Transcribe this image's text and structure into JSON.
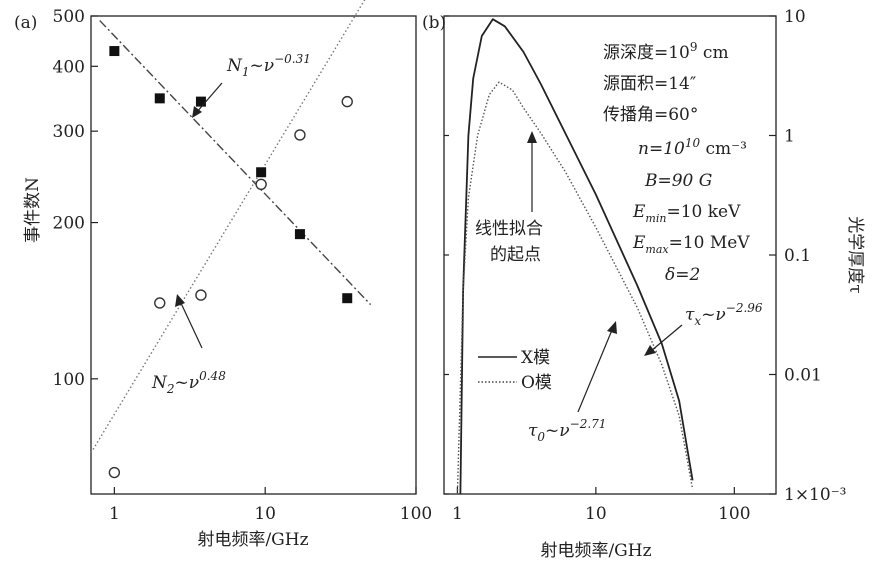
{
  "chart_data": [
    {
      "panel_label": "(a)",
      "type": "scatter",
      "xlabel": "射电频率/GHz",
      "ylabel": "事件数N",
      "xscale": "log",
      "yscale": "log",
      "xlim": [
        0.7,
        100
      ],
      "ylim": [
        60,
        500
      ],
      "xticks": [
        1,
        10,
        100
      ],
      "xtick_labels": [
        "1",
        "10",
        "100"
      ],
      "yticks": [
        100,
        200,
        300,
        400,
        500
      ],
      "ytick_labels": [
        "100",
        "200",
        "300",
        "400",
        "500"
      ],
      "series": [
        {
          "name": "N1",
          "marker": "filled-square",
          "points": [
            [
              1.0,
              428
            ],
            [
              2.0,
              347
            ],
            [
              3.75,
              342
            ],
            [
              9.4,
              250
            ],
            [
              17.0,
              190
            ],
            [
              35.0,
              143
            ]
          ]
        },
        {
          "name": "N2",
          "marker": "open-circle",
          "points": [
            [
              1.0,
              66
            ],
            [
              2.0,
              140
            ],
            [
              3.75,
              145
            ],
            [
              9.4,
              237
            ],
            [
              17.0,
              295
            ],
            [
              35.0,
              342
            ]
          ]
        }
      ],
      "fits": [
        {
          "series": "N1",
          "style": "dash-dot",
          "exponent": -0.31,
          "x": [
            0.8,
            50
          ],
          "y": [
            490,
            139
          ]
        },
        {
          "series": "N2",
          "style": "dotted",
          "exponent": 0.48,
          "x": [
            0.7,
            50
          ],
          "y": [
            72,
            561
          ]
        }
      ],
      "annotations": [
        {
          "base": "N",
          "sub": "1",
          "mid": "~ν",
          "sup": "−0.31"
        },
        {
          "base": "N",
          "sub": "2",
          "mid": "~ν",
          "sup": "0.48"
        }
      ]
    },
    {
      "panel_label": "(b)",
      "type": "line",
      "xlabel": "射电频率/GHz",
      "ylabel_right": "光学厚度τ",
      "xscale": "log",
      "yscale": "log",
      "xlim": [
        0.8,
        200
      ],
      "ylim": [
        0.001,
        10
      ],
      "xticks": [
        1,
        10,
        100
      ],
      "xtick_labels": [
        "1",
        "10",
        "100"
      ],
      "yticks": [
        0.001,
        0.01,
        0.1,
        1,
        10
      ],
      "ytick_labels": [
        "1×10⁻³",
        "0.01",
        "0.1",
        "1",
        "10"
      ],
      "params": [
        {
          "text": "源深度=10",
          "sup": "9",
          "tail": " cm"
        },
        {
          "text": "源面积=14″",
          "sup": "",
          "tail": ""
        },
        {
          "text": "传播角=60°",
          "sup": "",
          "tail": ""
        },
        {
          "text": "n=10",
          "sup": "10",
          "tail": " cm⁻³"
        },
        {
          "text": "B=90 G",
          "sup": "",
          "tail": ""
        },
        {
          "text": "E",
          "sub": "min",
          "tail": "=10 keV"
        },
        {
          "text": "E",
          "sub": "max",
          "tail": "=10 MeV"
        },
        {
          "text": "δ=2",
          "sup": "",
          "tail": ""
        }
      ],
      "legend": [
        "X模",
        "O模"
      ],
      "legend_position": "lower-left",
      "series": [
        {
          "name": "X模",
          "style": "solid",
          "x": [
            1.05,
            1.1,
            1.2,
            1.3,
            1.5,
            1.8,
            2.2,
            3.0,
            4.0,
            6.0,
            10.0,
            20.0,
            30.0,
            40.0,
            50.0
          ],
          "y": [
            0.001,
            0.05,
            1.0,
            3.0,
            6.8,
            9.4,
            8.2,
            5.0,
            2.7,
            1.05,
            0.32,
            0.055,
            0.018,
            0.006,
            0.0013
          ]
        },
        {
          "name": "O模",
          "style": "dotted",
          "x": [
            1.0,
            1.1,
            1.2,
            1.4,
            1.7,
            2.0,
            2.5,
            3.0,
            4.0,
            6.0,
            10.0,
            20.0,
            30.0,
            40.0,
            50.0
          ],
          "y": [
            0.001,
            0.05,
            0.3,
            1.0,
            2.2,
            2.8,
            2.4,
            1.7,
            1.05,
            0.5,
            0.17,
            0.036,
            0.012,
            0.0045,
            0.0011
          ]
        }
      ],
      "annotations": [
        {
          "text": "线性拟合",
          "text2": "的起点"
        },
        {
          "base": "τ",
          "sub": "x",
          "mid": "~ν",
          "sup": "−2.96"
        },
        {
          "base": "τ",
          "sub": "0",
          "mid": "~ν",
          "sup": "−2.71"
        }
      ]
    }
  ]
}
